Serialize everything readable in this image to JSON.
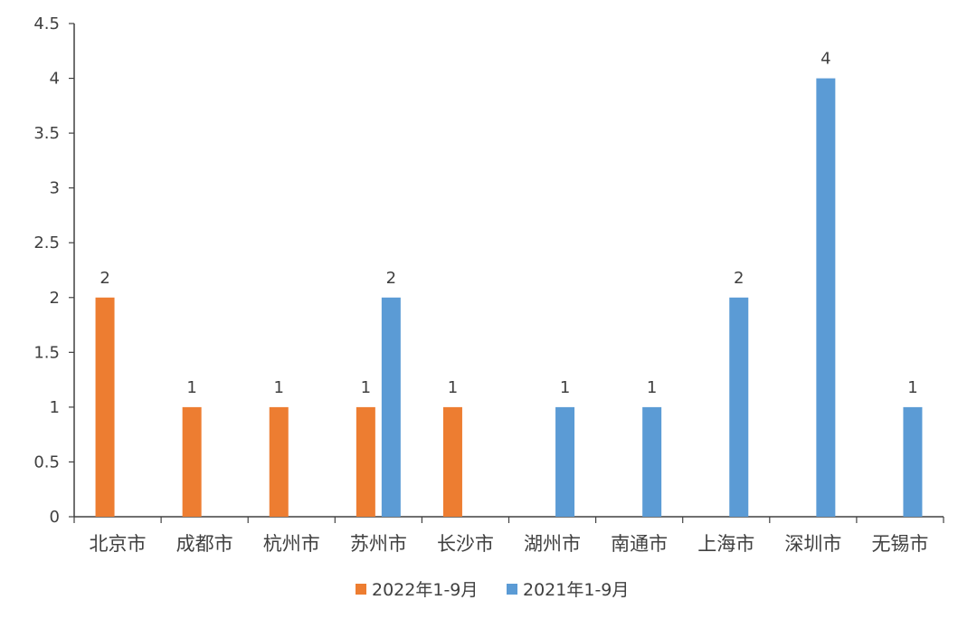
{
  "chart_data": {
    "type": "bar",
    "categories": [
      "北京市",
      "成都市",
      "杭州市",
      "苏州市",
      "长沙市",
      "湖州市",
      "南通市",
      "上海市",
      "深圳市",
      "无锡市"
    ],
    "series": [
      {
        "name": "2022年1-9月",
        "color": "#ed7d31",
        "values": [
          2,
          1,
          1,
          1,
          1,
          null,
          null,
          null,
          null,
          null
        ]
      },
      {
        "name": "2021年1-9月",
        "color": "#5b9bd5",
        "values": [
          null,
          null,
          null,
          2,
          null,
          1,
          1,
          2,
          4,
          1
        ]
      }
    ],
    "yticks": [
      "0",
      "0.5",
      "1",
      "1.5",
      "2",
      "2.5",
      "3",
      "3.5",
      "4",
      "4.5"
    ],
    "ylim": [
      0,
      4.5
    ],
    "grid": false,
    "legend": "bottom"
  }
}
